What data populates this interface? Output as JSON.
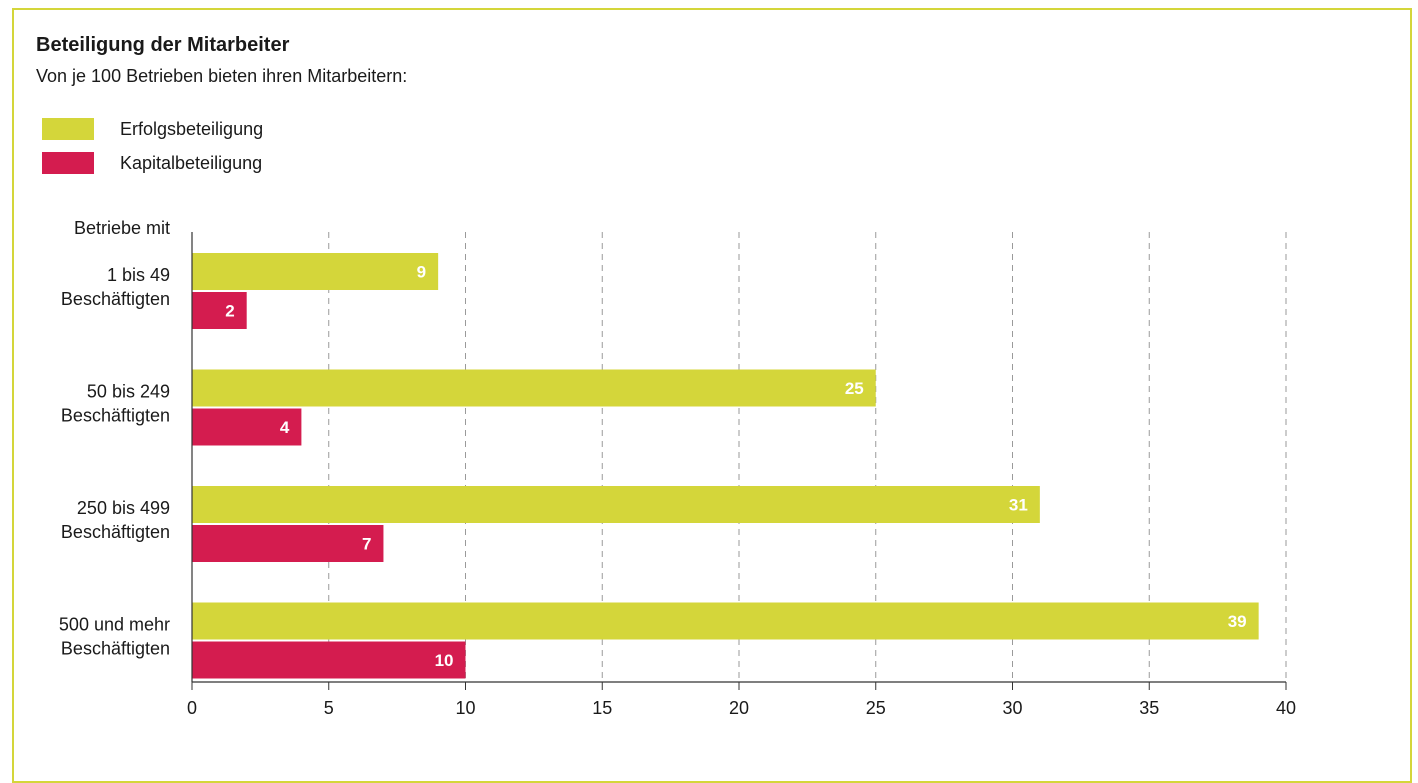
{
  "chart_data": {
    "type": "bar",
    "orientation": "horizontal",
    "title": "Beteiligung der Mitarbeiter",
    "subtitle": "Von je 100 Betrieben bieten ihren Mitarbeitern:",
    "ylabel": "Betriebe mit",
    "xlabel": "",
    "categories": [
      [
        "1 bis 49",
        "Beschäftigten"
      ],
      [
        "50 bis 249",
        "Beschäftigten"
      ],
      [
        "250 bis 499",
        "Beschäftigten"
      ],
      [
        "500 und mehr",
        "Beschäftigten"
      ]
    ],
    "series": [
      {
        "name": "Erfolgsbeteiligung",
        "color": "#d4d63a",
        "values": [
          9,
          25,
          31,
          39
        ]
      },
      {
        "name": "Kapitalbeteiligung",
        "color": "#d41c4f",
        "values": [
          2,
          4,
          7,
          10
        ]
      }
    ],
    "xlim": [
      0,
      40
    ],
    "xticks": [
      0,
      5,
      10,
      15,
      20,
      25,
      30,
      35,
      40
    ],
    "grid": "vertical-dashed",
    "legend_position": "top-left"
  }
}
